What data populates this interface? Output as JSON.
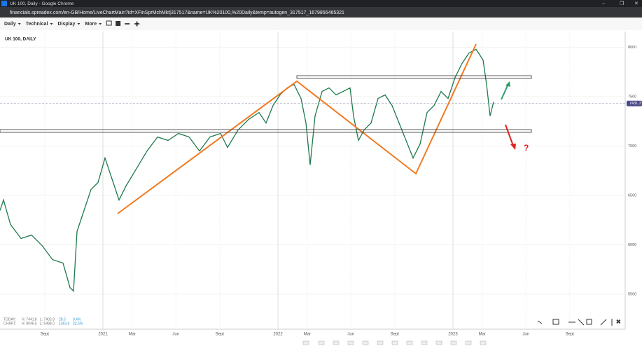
{
  "window": {
    "title": "UK 100, Daily - Google Chrome",
    "url": "financials.spreadex.com/en-GB/Home/LiveChartMain?id=XFinSprMchMkt|317517&name=UK%20100,%20Daily&temp=autogen_317517_1679856465321"
  },
  "toolbar": {
    "items": [
      "Daily",
      "Technical",
      "Display",
      "More"
    ]
  },
  "info": {
    "today": [
      "TODAY:",
      "H: 7441.8",
      "L: 7402.8",
      "28.5",
      "0.4%"
    ],
    "chart": [
      "CHART:",
      "H: 8046.5",
      "L: 5488.0",
      "1363.9",
      "22.5%"
    ]
  },
  "chart_data": {
    "type": "line",
    "title": "UK 100, DAILY",
    "color": "#1e7a4c",
    "last_price": 7431.3,
    "x": [
      2020.412,
      2020.432,
      2020.472,
      2020.532,
      2020.592,
      2020.652,
      2020.712,
      2020.772,
      2020.812,
      2020.832,
      2020.852,
      2020.892,
      2020.932,
      2020.972,
      2021.012,
      2021.052,
      2021.092,
      2021.132,
      2021.192,
      2021.252,
      2021.312,
      2021.372,
      2021.432,
      2021.492,
      2021.552,
      2021.612,
      2021.672,
      2021.712,
      2021.772,
      2021.832,
      2021.892,
      2021.932,
      2021.972,
      2022.012,
      2022.052,
      2022.092,
      2022.132,
      2022.16,
      2022.184,
      2022.212,
      2022.252,
      2022.292,
      2022.332,
      2022.372,
      2022.412,
      2022.432,
      2022.46,
      2022.492,
      2022.532,
      2022.572,
      2022.612,
      2022.652,
      2022.692,
      2022.732,
      2022.772,
      2022.812,
      2022.852,
      2022.892,
      2022.932,
      2022.972,
      2023.012,
      2023.052,
      2023.092,
      2023.132,
      2023.172,
      2023.192,
      2023.212,
      2023.232
    ],
    "values": [
      6348,
      6454,
      6206,
      6064,
      6099,
      5993,
      5851,
      5815,
      5567,
      5532,
      6135,
      6348,
      6560,
      6631,
      6879,
      6667,
      6454,
      6596,
      6773,
      6950,
      7092,
      7057,
      7128,
      7092,
      6950,
      7092,
      7128,
      6986,
      7163,
      7270,
      7340,
      7234,
      7411,
      7518,
      7589,
      7624,
      7482,
      7234,
      6809,
      7305,
      7553,
      7589,
      7518,
      7553,
      7589,
      7305,
      7057,
      7163,
      7234,
      7482,
      7518,
      7411,
      7234,
      7057,
      6879,
      7021,
      7340,
      7411,
      7553,
      7482,
      7695,
      7837,
      7943,
      7979,
      7872,
      7624,
      7305,
      7447
    ],
    "xlim": [
      2020.412,
      2023.984
    ],
    "ylim": [
      5160,
      8160
    ],
    "xticks": [
      {
        "value": 2020.667,
        "label": "Sept"
      },
      2021,
      {
        "value": 2021.167,
        "label": "Mar"
      },
      {
        "value": 2021.417,
        "label": "Jun"
      },
      {
        "value": 2021.667,
        "label": "Sept"
      },
      2022,
      {
        "value": 2022.167,
        "label": "Mar"
      },
      {
        "value": 2022.417,
        "label": "Jun"
      },
      {
        "value": 2022.667,
        "label": "Sept"
      },
      2023,
      {
        "value": 2023.167,
        "label": "Mar"
      },
      {
        "value": 2023.417,
        "label": "Jun"
      },
      {
        "value": 2023.667,
        "label": "Sept"
      }
    ],
    "yticks": [
      5500,
      6000,
      6500,
      7000,
      7500,
      8000
    ],
    "grid": true
  }
}
